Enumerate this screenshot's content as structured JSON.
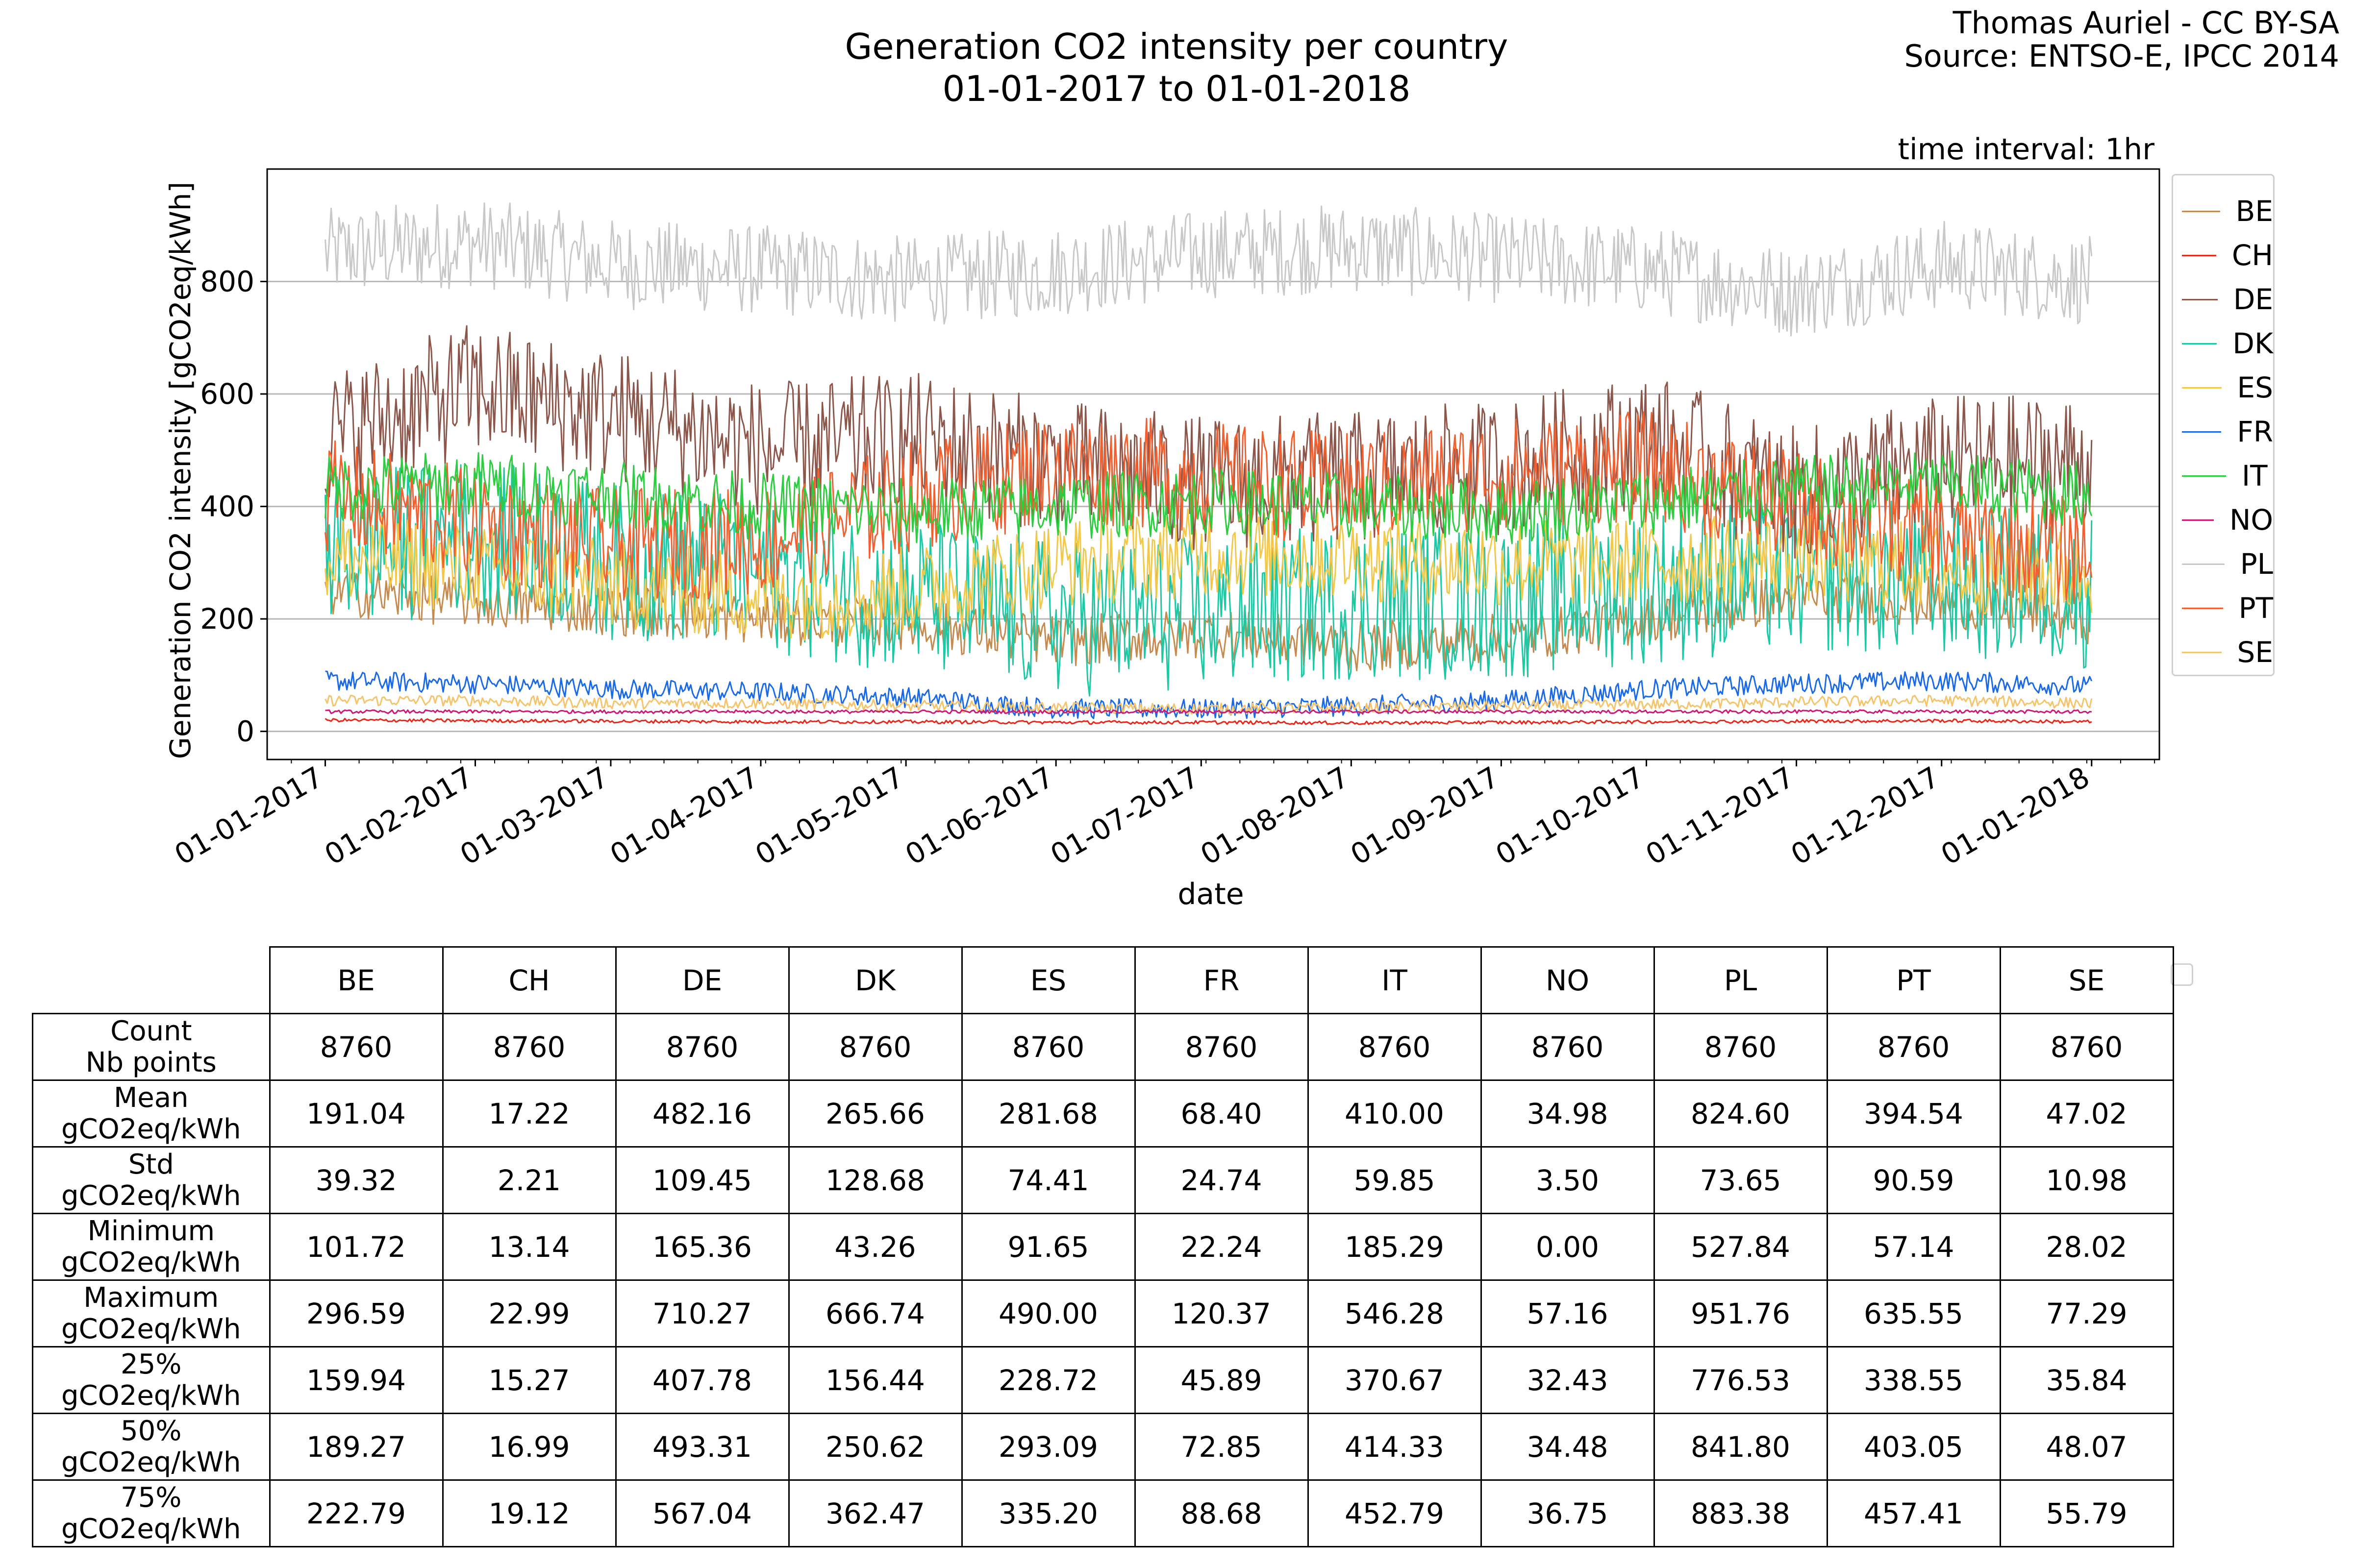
{
  "credit": {
    "author": "Thomas Auriel - CC BY-SA",
    "source": "Source: ENTSO-E, IPCC 2014"
  },
  "chart_data": {
    "type": "line",
    "title": "Generation CO2 intensity per country",
    "subtitle": "01-01-2017 to 01-01-2018",
    "annotation": "time interval: 1hr",
    "xlabel": "date",
    "ylabel": "Generation CO2 intensity [gCO2eq/kWh]",
    "xlim": [
      "2016-12-20",
      "2018-01-15"
    ],
    "ylim": [
      -50,
      1000
    ],
    "y_ticks": [
      0,
      200,
      400,
      600,
      800
    ],
    "x_ticks": [
      "01-01-2017",
      "01-02-2017",
      "01-03-2017",
      "01-04-2017",
      "01-05-2017",
      "01-06-2017",
      "01-07-2017",
      "01-08-2017",
      "01-09-2017",
      "01-10-2017",
      "01-11-2017",
      "01-12-2017",
      "01-01-2018"
    ],
    "grid": "horizontal",
    "legend_position": "right",
    "series": [
      {
        "name": "BE",
        "color": "#c68a4e",
        "values": [
          250,
          230,
          215,
          200,
          190,
          160,
          175,
          150,
          165,
          200,
          240,
          230,
          200
        ]
      },
      {
        "name": "CH",
        "color": "#e8281a",
        "values": [
          20,
          19,
          18,
          17,
          17,
          16,
          16,
          15,
          16,
          17,
          18,
          19,
          17
        ]
      },
      {
        "name": "DE",
        "color": "#8c564b",
        "values": [
          520,
          610,
          560,
          500,
          520,
          470,
          440,
          450,
          470,
          520,
          420,
          480,
          480
        ]
      },
      {
        "name": "DK",
        "color": "#1fc8a5",
        "values": [
          320,
          350,
          300,
          280,
          240,
          200,
          210,
          230,
          230,
          260,
          280,
          270,
          250
        ]
      },
      {
        "name": "ES",
        "color": "#f2c84b",
        "values": [
          310,
          290,
          260,
          240,
          250,
          300,
          320,
          310,
          300,
          300,
          310,
          290,
          280
        ]
      },
      {
        "name": "FR",
        "color": "#1a6ae8",
        "values": [
          90,
          85,
          75,
          70,
          60,
          40,
          40,
          45,
          55,
          75,
          85,
          90,
          80
        ]
      },
      {
        "name": "IT",
        "color": "#2ecc40",
        "values": [
          430,
          440,
          420,
          400,
          390,
          400,
          410,
          400,
          390,
          410,
          430,
          440,
          420
        ]
      },
      {
        "name": "NO",
        "color": "#cc1a77",
        "values": [
          35,
          35,
          35,
          35,
          35,
          35,
          35,
          35,
          35,
          35,
          35,
          35,
          35
        ]
      },
      {
        "name": "PL",
        "color": "#c8c8c8",
        "values": [
          850,
          870,
          830,
          820,
          800,
          820,
          850,
          860,
          840,
          820,
          780,
          830,
          800
        ]
      },
      {
        "name": "PT",
        "color": "#f06030",
        "values": [
          420,
          370,
          330,
          340,
          420,
          470,
          450,
          430,
          460,
          470,
          400,
          350,
          320
        ]
      },
      {
        "name": "SE",
        "color": "#f5c46b",
        "values": [
          55,
          55,
          50,
          50,
          45,
          42,
          40,
          42,
          45,
          48,
          52,
          55,
          50
        ]
      }
    ]
  },
  "table": {
    "columns": [
      "BE",
      "CH",
      "DE",
      "DK",
      "ES",
      "FR",
      "IT",
      "NO",
      "PL",
      "PT",
      "SE"
    ],
    "rows": [
      {
        "label1": "Count",
        "label2": "Nb points",
        "cells": [
          "8760",
          "8760",
          "8760",
          "8760",
          "8760",
          "8760",
          "8760",
          "8760",
          "8760",
          "8760",
          "8760"
        ]
      },
      {
        "label1": "Mean",
        "label2": "gCO2eq/kWh",
        "cells": [
          "191.04",
          "17.22",
          "482.16",
          "265.66",
          "281.68",
          "68.40",
          "410.00",
          "34.98",
          "824.60",
          "394.54",
          "47.02"
        ]
      },
      {
        "label1": "Std",
        "label2": "gCO2eq/kWh",
        "cells": [
          "39.32",
          "2.21",
          "109.45",
          "128.68",
          "74.41",
          "24.74",
          "59.85",
          "3.50",
          "73.65",
          "90.59",
          "10.98"
        ]
      },
      {
        "label1": "Minimum",
        "label2": "gCO2eq/kWh",
        "cells": [
          "101.72",
          "13.14",
          "165.36",
          "43.26",
          "91.65",
          "22.24",
          "185.29",
          "0.00",
          "527.84",
          "57.14",
          "28.02"
        ]
      },
      {
        "label1": "Maximum",
        "label2": "gCO2eq/kWh",
        "cells": [
          "296.59",
          "22.99",
          "710.27",
          "666.74",
          "490.00",
          "120.37",
          "546.28",
          "57.16",
          "951.76",
          "635.55",
          "77.29"
        ]
      },
      {
        "label1": "25%",
        "label2": "gCO2eq/kWh",
        "cells": [
          "159.94",
          "15.27",
          "407.78",
          "156.44",
          "228.72",
          "45.89",
          "370.67",
          "32.43",
          "776.53",
          "338.55",
          "35.84"
        ]
      },
      {
        "label1": "50%",
        "label2": "gCO2eq/kWh",
        "cells": [
          "189.27",
          "16.99",
          "493.31",
          "250.62",
          "293.09",
          "72.85",
          "414.33",
          "34.48",
          "841.80",
          "403.05",
          "48.07"
        ]
      },
      {
        "label1": "75%",
        "label2": "gCO2eq/kWh",
        "cells": [
          "222.79",
          "19.12",
          "567.04",
          "362.47",
          "335.20",
          "88.68",
          "452.79",
          "36.75",
          "883.38",
          "457.41",
          "55.79"
        ]
      }
    ]
  }
}
